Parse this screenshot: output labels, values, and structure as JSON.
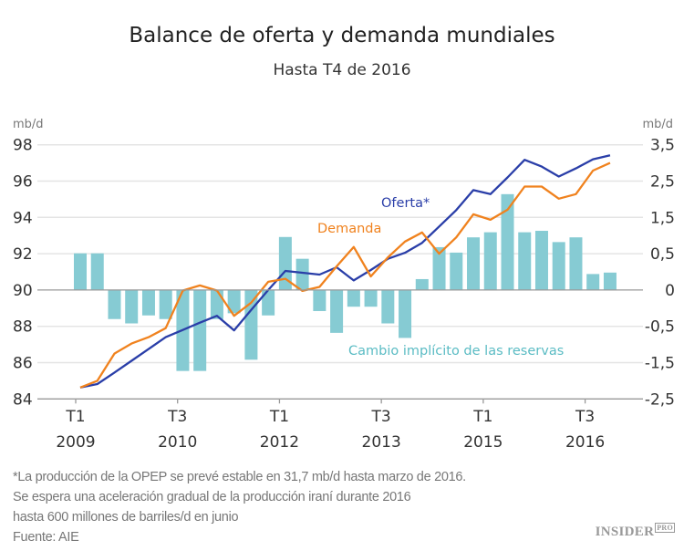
{
  "title": "Balance de oferta y demanda mundiales",
  "subtitle": "Hasta T4 de 2016",
  "footer": {
    "notes": [
      "*La producción de la OPEP se prevé estable en 31,7 mb/d hasta marzo de 2016.",
      "Se espera una aceleración gradual de la producción iraní durante 2016",
      "hasta 600 millones de barriles/d en junio",
      "Fuente: AIE"
    ],
    "logo": "INSIDER",
    "logo_badge": "PRO"
  },
  "chart_data": {
    "type": "bar+line",
    "title": "Balance de oferta y demanda mundiales",
    "subtitle": "Hasta T4 de 2016",
    "left_axis": {
      "unit": "mb/d",
      "ylim": [
        84,
        98
      ],
      "ticks": [
        "98",
        "96",
        "94",
        "92",
        "90",
        "88",
        "86",
        "84"
      ]
    },
    "right_axis": {
      "unit": "mb/d",
      "ticks": [
        "3,5",
        "2,5",
        "1,5",
        "0,5",
        "0",
        "-0,5",
        "-1,5",
        "-2,5"
      ]
    },
    "grid": true,
    "x_ticks": [
      {
        "quarter": "T1",
        "year": "2009",
        "index": 0
      },
      {
        "quarter": "T3",
        "year": "2010",
        "index": 6
      },
      {
        "quarter": "T1",
        "year": "2012",
        "index": 12
      },
      {
        "quarter": "T3",
        "year": "2013",
        "index": 18
      },
      {
        "quarter": "T1",
        "year": "2015",
        "index": 24
      },
      {
        "quarter": "T3",
        "year": "2016",
        "index": 30
      }
    ],
    "categories": [
      "T1 2009",
      "T2 2009",
      "T3 2009",
      "T4 2009",
      "T1 2010",
      "T2 2010",
      "T3 2010",
      "T4 2010",
      "T1 2011",
      "T2 2011",
      "T3 2011",
      "T4 2011",
      "T1 2012",
      "T2 2012",
      "T3 2012",
      "T4 2012",
      "T1 2013",
      "T2 2013",
      "T3 2013",
      "T4 2013",
      "T1 2014",
      "T2 2014",
      "T3 2014",
      "T4 2014",
      "T1 2015",
      "T2 2015",
      "T3 2015",
      "T4 2015",
      "T1 2016",
      "T2 2016",
      "T3 2016",
      "T4 2016"
    ],
    "series": [
      {
        "name": "Oferta*",
        "type": "line",
        "axis": "left",
        "color": "#2a3ea8",
        "values": [
          84.63,
          84.82,
          85.45,
          86.1,
          86.75,
          87.4,
          87.8,
          88.2,
          88.58,
          87.78,
          88.9,
          90.0,
          91.05,
          90.95,
          90.85,
          91.25,
          90.53,
          91.1,
          91.72,
          92.05,
          92.6,
          93.5,
          94.4,
          95.5,
          95.28,
          96.2,
          97.17,
          96.8,
          96.25,
          96.7,
          97.2,
          97.42
        ]
      },
      {
        "name": "Demanda",
        "type": "line",
        "axis": "left",
        "color": "#f0821e",
        "values": [
          84.63,
          85.0,
          86.5,
          87.05,
          87.4,
          87.9,
          89.97,
          90.25,
          89.97,
          88.58,
          89.3,
          90.45,
          90.62,
          89.95,
          90.17,
          91.3,
          92.37,
          90.75,
          91.8,
          92.67,
          93.17,
          92.0,
          92.9,
          94.17,
          93.87,
          94.42,
          95.7,
          95.7,
          95.03,
          95.28,
          96.58,
          97.0
        ]
      },
      {
        "name": "Cambio implícito de las reservas",
        "type": "bar",
        "axis": "right",
        "color": "#86cbd3",
        "values": [
          0.51,
          0.51,
          -0.4,
          -0.46,
          -0.35,
          -0.4,
          -1.73,
          -1.73,
          -0.4,
          -0.32,
          -1.42,
          -0.35,
          0.96,
          0.43,
          -0.29,
          -0.68,
          -0.23,
          -0.23,
          -0.46,
          -0.82,
          0.15,
          0.68,
          0.53,
          0.95,
          1.09,
          2.14,
          1.09,
          1.13,
          0.82,
          0.95,
          0.22,
          0.24
        ]
      }
    ]
  }
}
